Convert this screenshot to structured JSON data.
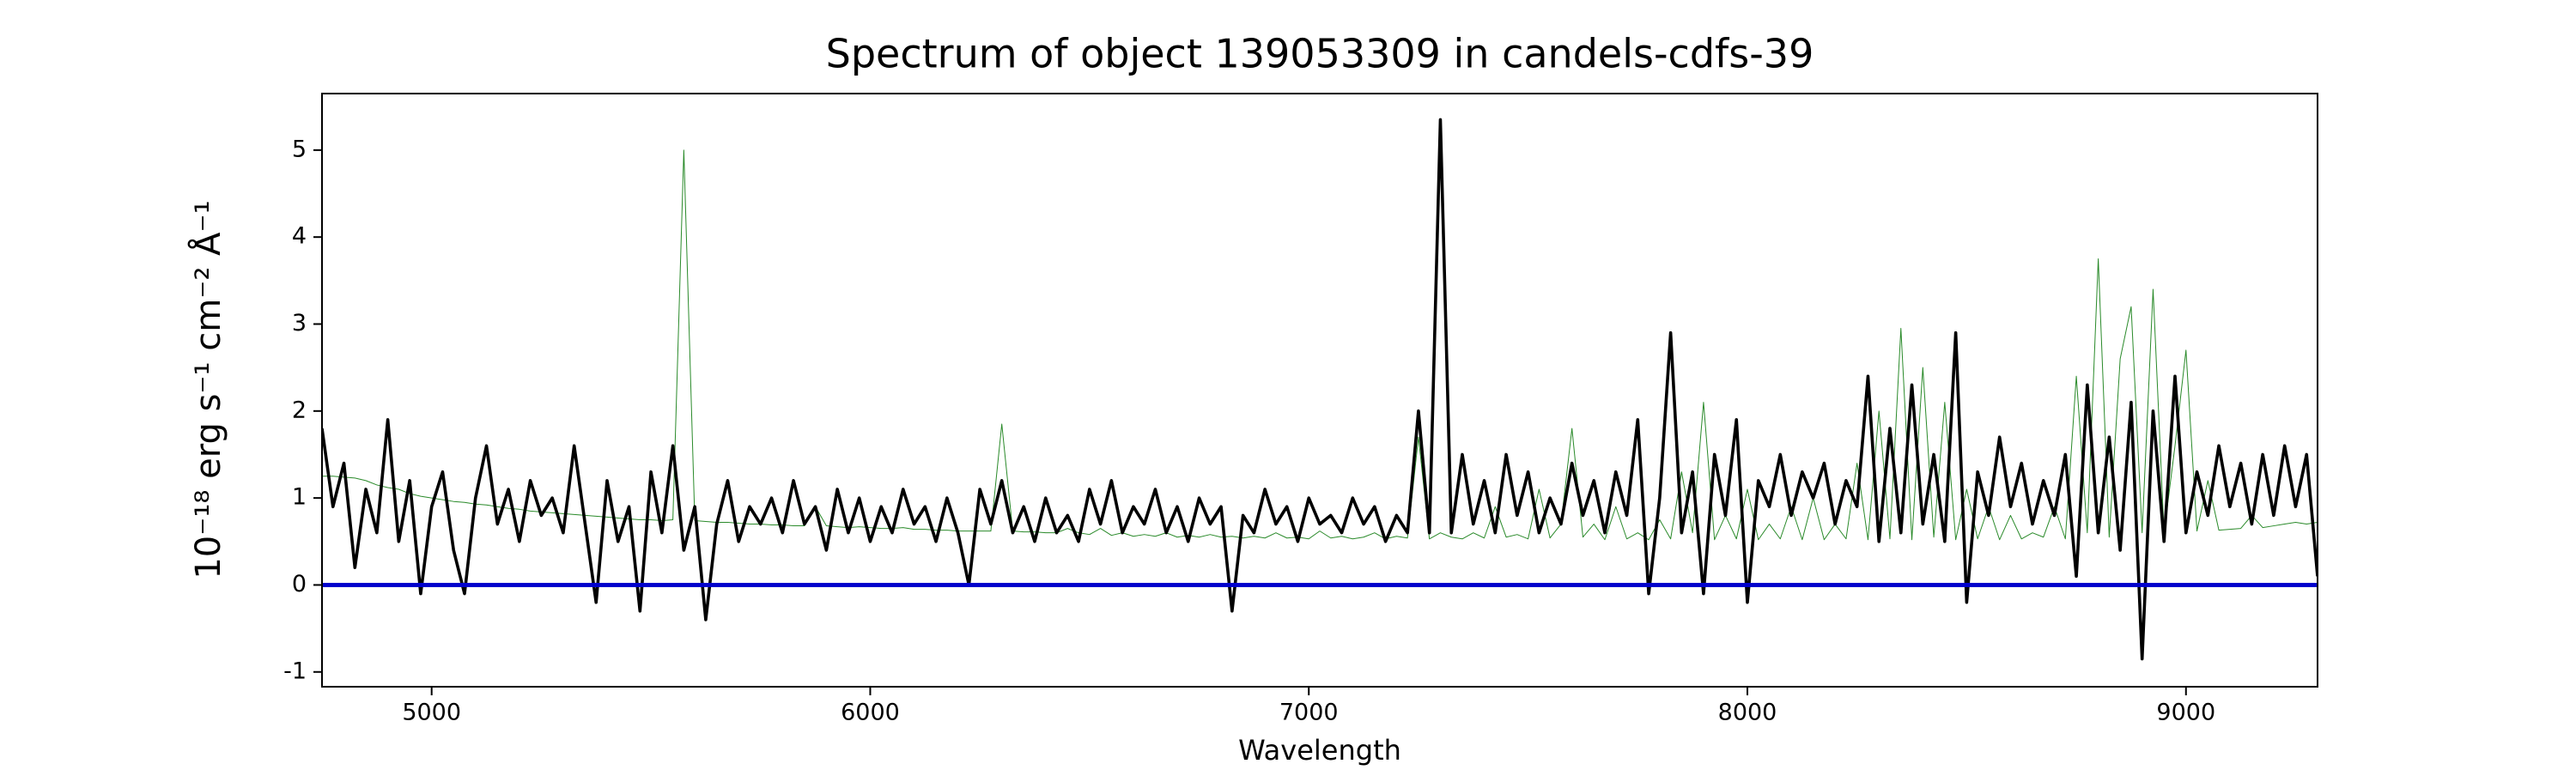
{
  "chart_data": {
    "type": "line",
    "title": "Spectrum of object 139053309 in candels-cdfs-39",
    "xlabel": "Wavelength",
    "ylabel": "10⁻¹⁸ erg s⁻¹ cm⁻² Å⁻¹",
    "xlim": [
      4750,
      9300
    ],
    "ylim": [
      -1.17,
      5.65
    ],
    "xticks": [
      5000,
      6000,
      7000,
      8000,
      9000
    ],
    "yticks": [
      -1,
      0,
      1,
      2,
      3,
      4,
      5
    ],
    "x": [
      4750,
      4775,
      4800,
      4825,
      4850,
      4875,
      4900,
      4925,
      4950,
      4975,
      5000,
      5025,
      5050,
      5075,
      5100,
      5125,
      5150,
      5175,
      5200,
      5225,
      5250,
      5275,
      5300,
      5325,
      5350,
      5375,
      5400,
      5425,
      5450,
      5475,
      5500,
      5525,
      5550,
      5575,
      5600,
      5625,
      5650,
      5675,
      5700,
      5725,
      5750,
      5775,
      5800,
      5825,
      5850,
      5875,
      5900,
      5925,
      5950,
      5975,
      6000,
      6025,
      6050,
      6075,
      6100,
      6125,
      6150,
      6175,
      6200,
      6225,
      6250,
      6275,
      6300,
      6325,
      6350,
      6375,
      6400,
      6425,
      6450,
      6475,
      6500,
      6525,
      6550,
      6575,
      6600,
      6625,
      6650,
      6675,
      6700,
      6725,
      6750,
      6775,
      6800,
      6825,
      6850,
      6875,
      6900,
      6925,
      6950,
      6975,
      7000,
      7025,
      7050,
      7075,
      7100,
      7125,
      7150,
      7175,
      7200,
      7225,
      7250,
      7275,
      7300,
      7325,
      7350,
      7375,
      7400,
      7425,
      7450,
      7475,
      7500,
      7525,
      7550,
      7575,
      7600,
      7625,
      7650,
      7675,
      7700,
      7725,
      7750,
      7775,
      7800,
      7825,
      7850,
      7875,
      7900,
      7925,
      7950,
      7975,
      8000,
      8025,
      8050,
      8075,
      8100,
      8125,
      8150,
      8175,
      8200,
      8225,
      8250,
      8275,
      8300,
      8325,
      8350,
      8375,
      8400,
      8425,
      8450,
      8475,
      8500,
      8525,
      8550,
      8575,
      8600,
      8625,
      8650,
      8675,
      8700,
      8725,
      8750,
      8775,
      8800,
      8825,
      8850,
      8875,
      8900,
      8925,
      8950,
      8975,
      9000,
      9025,
      9050,
      9075,
      9100,
      9125,
      9150,
      9175,
      9200,
      9225,
      9250,
      9275,
      9300
    ],
    "series": [
      {
        "color": "#2a8a2a",
        "width": 1,
        "values": [
          1.25,
          1.25,
          1.24,
          1.23,
          1.2,
          1.15,
          1.12,
          1.1,
          1.05,
          1.02,
          1.0,
          0.98,
          0.96,
          0.95,
          0.93,
          0.92,
          0.9,
          0.88,
          0.87,
          0.85,
          0.84,
          0.83,
          0.82,
          0.81,
          0.8,
          0.79,
          0.78,
          0.77,
          0.76,
          0.75,
          0.75,
          0.74,
          0.75,
          5.0,
          0.74,
          0.73,
          0.72,
          0.72,
          0.71,
          0.7,
          0.7,
          0.69,
          0.69,
          0.68,
          0.68,
          0.9,
          0.68,
          0.67,
          0.66,
          0.67,
          0.66,
          0.65,
          0.65,
          0.66,
          0.64,
          0.64,
          0.63,
          0.63,
          0.62,
          0.62,
          0.62,
          0.62,
          1.85,
          0.62,
          0.61,
          0.61,
          0.6,
          0.6,
          0.65,
          0.6,
          0.58,
          0.65,
          0.57,
          0.6,
          0.56,
          0.58,
          0.56,
          0.6,
          0.55,
          0.57,
          0.55,
          0.58,
          0.55,
          0.56,
          0.54,
          0.56,
          0.54,
          0.6,
          0.54,
          0.55,
          0.53,
          0.62,
          0.54,
          0.56,
          0.53,
          0.55,
          0.6,
          0.53,
          0.56,
          0.54,
          1.7,
          0.53,
          0.6,
          0.55,
          0.53,
          0.6,
          0.54,
          0.9,
          0.55,
          0.58,
          0.53,
          1.1,
          0.54,
          0.7,
          1.8,
          0.55,
          0.7,
          0.52,
          0.9,
          0.53,
          0.6,
          0.52,
          0.75,
          0.53,
          1.3,
          0.6,
          2.1,
          0.52,
          0.8,
          0.53,
          1.1,
          0.52,
          0.7,
          0.53,
          0.9,
          0.52,
          1.0,
          0.52,
          0.7,
          0.53,
          1.4,
          0.52,
          2.0,
          0.53,
          2.95,
          0.52,
          2.5,
          0.55,
          2.1,
          0.52,
          1.1,
          0.53,
          0.9,
          0.52,
          0.8,
          0.53,
          0.6,
          0.55,
          0.9,
          0.53,
          2.4,
          0.6,
          3.75,
          0.55,
          2.6,
          3.2,
          0.6,
          3.4,
          0.6,
          1.6,
          2.7,
          0.62,
          1.2,
          0.63,
          0.64,
          0.65,
          0.8,
          0.66,
          0.68,
          0.7,
          0.72,
          0.7,
          0.72
        ]
      },
      {
        "color": "#000000",
        "width": 3.6,
        "values": [
          1.8,
          0.9,
          1.4,
          0.2,
          1.1,
          0.6,
          1.9,
          0.5,
          1.2,
          -0.1,
          0.9,
          1.3,
          0.4,
          -0.1,
          1.0,
          1.6,
          0.7,
          1.1,
          0.5,
          1.2,
          0.8,
          1.0,
          0.6,
          1.6,
          0.7,
          -0.2,
          1.2,
          0.5,
          0.9,
          -0.3,
          1.3,
          0.6,
          1.6,
          0.4,
          0.9,
          -0.4,
          0.7,
          1.2,
          0.5,
          0.9,
          0.7,
          1.0,
          0.6,
          1.2,
          0.7,
          0.9,
          0.4,
          1.1,
          0.6,
          1.0,
          0.5,
          0.9,
          0.6,
          1.1,
          0.7,
          0.9,
          0.5,
          1.0,
          0.6,
          0.0,
          1.1,
          0.7,
          1.2,
          0.6,
          0.9,
          0.5,
          1.0,
          0.6,
          0.8,
          0.5,
          1.1,
          0.7,
          1.2,
          0.6,
          0.9,
          0.7,
          1.1,
          0.6,
          0.9,
          0.5,
          1.0,
          0.7,
          0.9,
          -0.3,
          0.8,
          0.6,
          1.1,
          0.7,
          0.9,
          0.5,
          1.0,
          0.7,
          0.8,
          0.6,
          1.0,
          0.7,
          0.9,
          0.5,
          0.8,
          0.6,
          2.0,
          0.6,
          5.35,
          0.6,
          1.5,
          0.7,
          1.2,
          0.6,
          1.5,
          0.8,
          1.3,
          0.6,
          1.0,
          0.7,
          1.4,
          0.8,
          1.2,
          0.6,
          1.3,
          0.8,
          1.9,
          -0.1,
          1.0,
          2.9,
          0.6,
          1.3,
          -0.1,
          1.5,
          0.8,
          1.9,
          -0.2,
          1.2,
          0.9,
          1.5,
          0.8,
          1.3,
          1.0,
          1.4,
          0.7,
          1.2,
          0.9,
          2.4,
          0.5,
          1.8,
          0.6,
          2.3,
          0.7,
          1.5,
          0.5,
          2.9,
          -0.2,
          1.3,
          0.8,
          1.7,
          0.9,
          1.4,
          0.7,
          1.2,
          0.8,
          1.5,
          0.1,
          2.3,
          0.6,
          1.7,
          0.4,
          2.1,
          -0.85,
          2.0,
          0.5,
          2.4,
          0.6,
          1.3,
          0.8,
          1.6,
          0.9,
          1.4,
          0.7,
          1.5,
          0.8,
          1.6,
          0.9,
          1.5,
          0.1
        ]
      },
      {
        "color": "#0000cc",
        "width": 5,
        "x": [
          4750,
          9300
        ],
        "values": [
          0,
          0
        ]
      }
    ]
  }
}
